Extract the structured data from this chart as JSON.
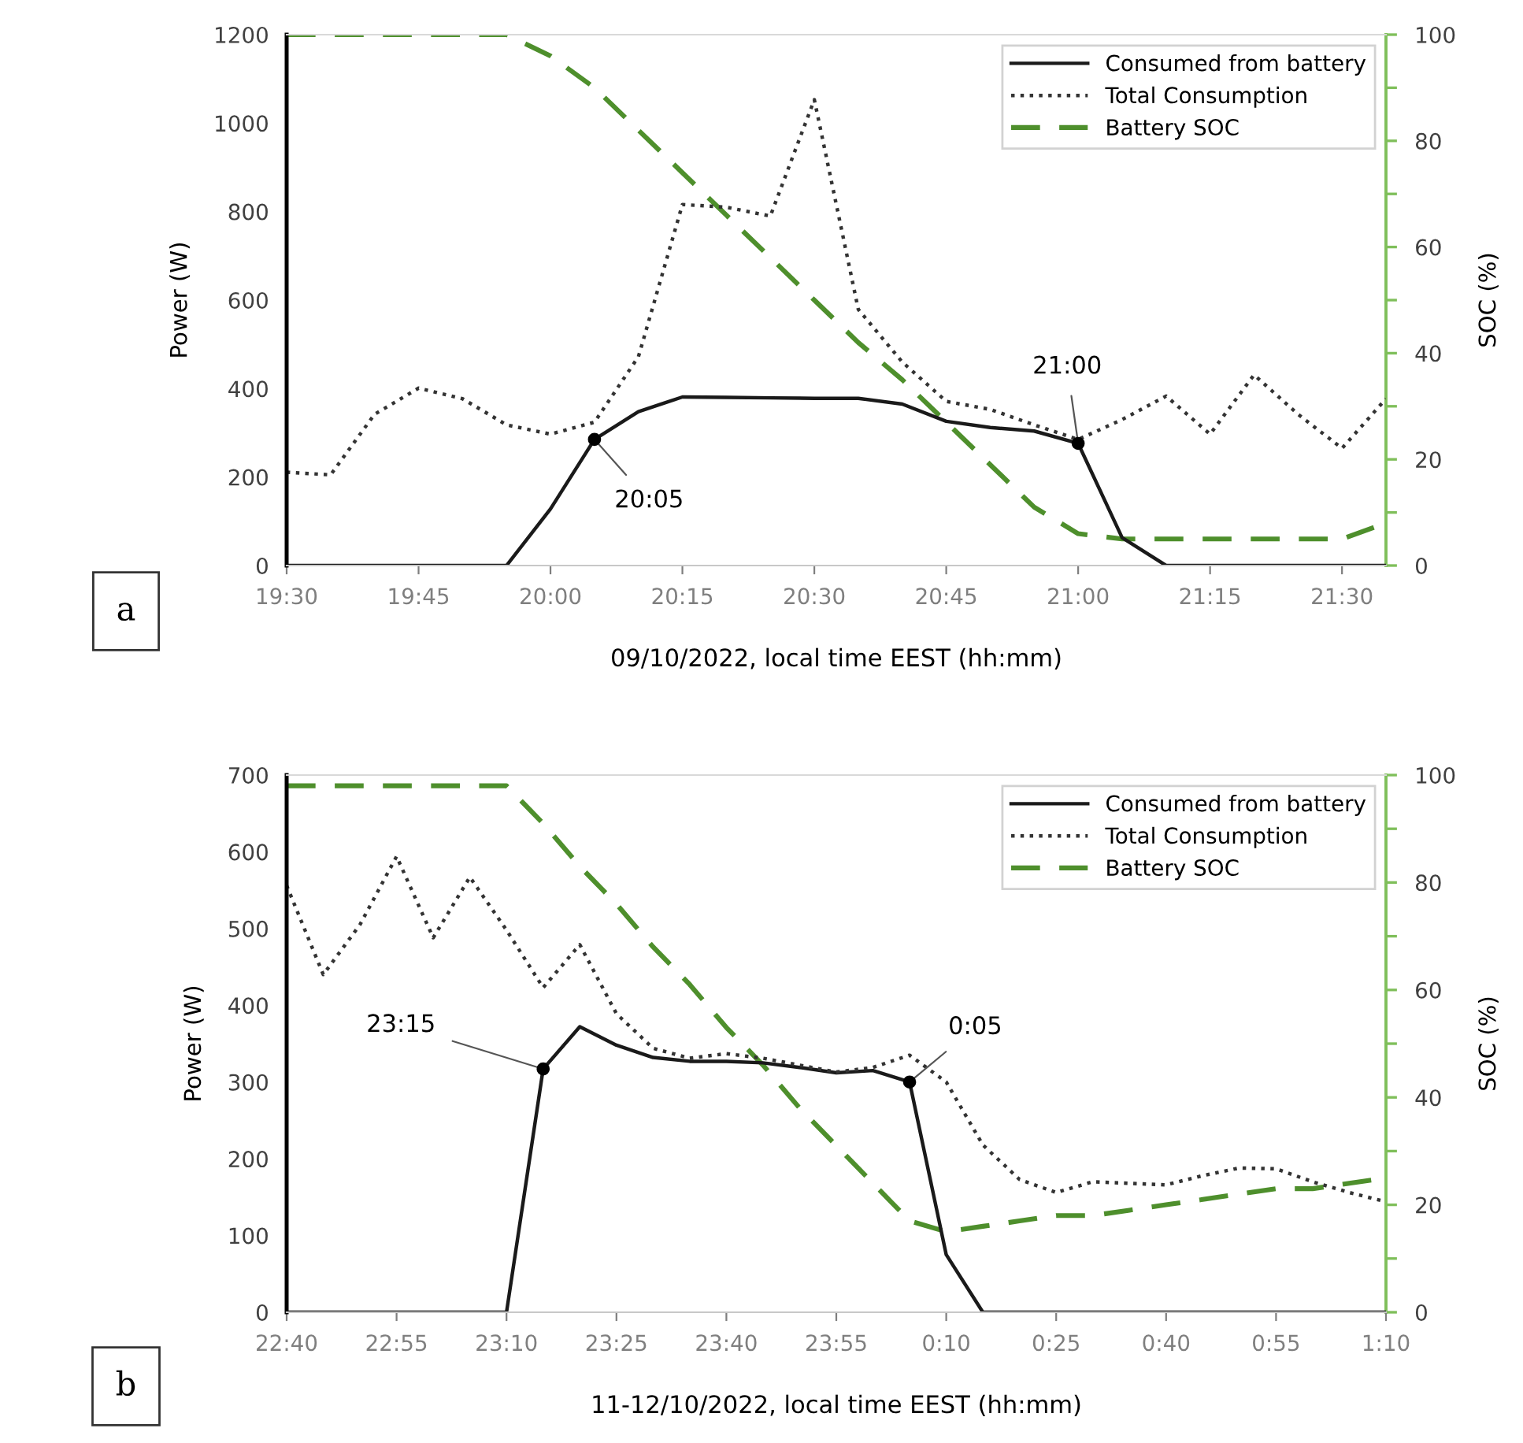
{
  "chart_data": [
    {
      "type": "line",
      "xlabel": "09/10/2022, local time EEST (hh:mm)",
      "ylabel": "Power (W)",
      "y2label": "SOC (%)",
      "x": [
        "2022-10-09T19:30",
        "2022-10-09T19:35",
        "2022-10-09T19:40",
        "2022-10-09T19:45",
        "2022-10-09T19:50",
        "2022-10-09T19:55",
        "2022-10-09T20:00",
        "2022-10-09T20:05",
        "2022-10-09T20:10",
        "2022-10-09T20:15",
        "2022-10-09T20:20",
        "2022-10-09T20:25",
        "2022-10-09T20:30",
        "2022-10-09T20:35",
        "2022-10-09T20:40",
        "2022-10-09T20:45",
        "2022-10-09T20:50",
        "2022-10-09T20:55",
        "2022-10-09T21:00",
        "2022-10-09T21:05",
        "2022-10-09T21:10",
        "2022-10-09T21:15",
        "2022-10-09T21:20",
        "2022-10-09T21:25",
        "2022-10-09T21:30",
        "2022-10-09T21:35"
      ],
      "series": [
        {
          "name": "Consumed from battery",
          "color": "#1a1a1a",
          "line_style": "solid",
          "values": [
            0,
            0,
            0,
            0,
            0,
            0,
            128,
            285,
            348,
            381,
            380,
            379,
            378,
            378,
            365,
            326,
            312,
            304,
            276,
            63,
            0,
            0,
            0,
            0,
            0,
            0
          ]
        },
        {
          "name": "Total Consumption",
          "color": "#333333",
          "line_style": "dotted",
          "values": [
            211,
            205,
            342,
            401,
            377,
            318,
            297,
            324,
            472,
            816,
            810,
            790,
            1053,
            579,
            460,
            371,
            353,
            318,
            285,
            330,
            383,
            297,
            431,
            342,
            265,
            377
          ]
        },
        {
          "name": "Battery SOC",
          "color": "#4e8f2c",
          "line_style": "dashed",
          "axis": "y2",
          "values": [
            100,
            100,
            100,
            100,
            100,
            100,
            96,
            90,
            82,
            74,
            66,
            58,
            50,
            42,
            35,
            27,
            19,
            11,
            6,
            5,
            5,
            5,
            5,
            5,
            5,
            8
          ]
        }
      ],
      "xlim": [
        "2022-10-09T19:30",
        "2022-10-09T21:35"
      ],
      "xticks": [
        {
          "value": "2022-10-09T19:30",
          "label": "19:30"
        },
        {
          "value": "2022-10-09T19:45",
          "label": "19:45"
        },
        {
          "value": "2022-10-09T20:00",
          "label": "20:00"
        },
        {
          "value": "2022-10-09T20:15",
          "label": "20:15"
        },
        {
          "value": "2022-10-09T20:30",
          "label": "20:30"
        },
        {
          "value": "2022-10-09T20:45",
          "label": "20:45"
        },
        {
          "value": "2022-10-09T21:00",
          "label": "21:00"
        },
        {
          "value": "2022-10-09T21:15",
          "label": "21:15"
        },
        {
          "value": "2022-10-09T21:30",
          "label": "21:30"
        }
      ],
      "ylim": [
        0,
        1200
      ],
      "yticks": [
        0,
        200,
        400,
        600,
        800,
        1000,
        1200
      ],
      "y2lim": [
        0,
        100
      ],
      "y2ticks": [
        0,
        {
          "value": 10,
          "label": null
        },
        20,
        {
          "value": 30,
          "label": null
        },
        40,
        {
          "value": 50,
          "label": null
        },
        60,
        {
          "value": 70,
          "label": null
        },
        80,
        {
          "value": 90,
          "label": null
        },
        100
      ],
      "annotations": [
        {
          "text": "20:05",
          "x": "2022-10-09T20:05",
          "y": 285
        },
        {
          "text": "21:00",
          "x": "2022-10-09T21:00",
          "y": 276
        },
        "a"
      ],
      "legend": "top right",
      "grid": false,
      "marker": "none"
    },
    {
      "type": "line",
      "xlabel": "11-12/10/2022, local time EEST (hh:mm)",
      "ylabel": "Power (W)",
      "y2label": "SOC (%)",
      "x": [
        "2022-10-11T22:40",
        "2022-10-11T22:45",
        "2022-10-11T22:50",
        "2022-10-11T22:55",
        "2022-10-11T23:00",
        "2022-10-11T23:05",
        "2022-10-11T23:10",
        "2022-10-11T23:15",
        "2022-10-11T23:20",
        "2022-10-11T23:25",
        "2022-10-11T23:30",
        "2022-10-11T23:35",
        "2022-10-11T23:40",
        "2022-10-11T23:45",
        "2022-10-11T23:50",
        "2022-10-11T23:55",
        "2022-10-12T00:00",
        "2022-10-12T00:05",
        "2022-10-12T00:10",
        "2022-10-12T00:15",
        "2022-10-12T00:20",
        "2022-10-12T00:25",
        "2022-10-12T00:30",
        "2022-10-12T00:35",
        "2022-10-12T00:40",
        "2022-10-12T00:45",
        "2022-10-12T00:50",
        "2022-10-12T00:55",
        "2022-10-12T01:00",
        "2022-10-12T01:05",
        "2022-10-12T01:10"
      ],
      "series": [
        {
          "name": "Consumed from battery",
          "color": "#1a1a1a",
          "line_style": "solid",
          "values": [
            0,
            0,
            0,
            0,
            0,
            0,
            0,
            317,
            372,
            348,
            332,
            327,
            327,
            325,
            319,
            312,
            315,
            300,
            75,
            0,
            0,
            0,
            0,
            0,
            0,
            0,
            0,
            0,
            0,
            0,
            0
          ]
        },
        {
          "name": "Total Consumption",
          "color": "#333333",
          "line_style": "dotted",
          "values": [
            556,
            440,
            505,
            594,
            488,
            567,
            498,
            423,
            479,
            389,
            344,
            331,
            337,
            331,
            322,
            313,
            319,
            335,
            300,
            218,
            173,
            156,
            170,
            168,
            166,
            178,
            188,
            187,
            170,
            156,
            144
          ]
        },
        {
          "name": "Battery SOC",
          "color": "#4e8f2c",
          "line_style": "dashed",
          "axis": "y2",
          "values": [
            98,
            98,
            98,
            98,
            98,
            98,
            98,
            91,
            83,
            76,
            68,
            61,
            53,
            46,
            38,
            31,
            24,
            17,
            15,
            16,
            17,
            18,
            18,
            19,
            20,
            21,
            22,
            23,
            23,
            24,
            25
          ]
        }
      ],
      "xlim": [
        "2022-10-11T22:40",
        "2022-10-12T01:10"
      ],
      "xticks": [
        {
          "value": "2022-10-11T22:40",
          "label": "22:40"
        },
        {
          "value": "2022-10-11T22:55",
          "label": "22:55"
        },
        {
          "value": "2022-10-11T23:10",
          "label": "23:10"
        },
        {
          "value": "2022-10-11T23:25",
          "label": "23:25"
        },
        {
          "value": "2022-10-11T23:40",
          "label": "23:40"
        },
        {
          "value": "2022-10-11T23:55",
          "label": "23:55"
        },
        {
          "value": "2022-10-12T00:10",
          "label": "0:10"
        },
        {
          "value": "2022-10-12T00:25",
          "label": "0:25"
        },
        {
          "value": "2022-10-12T00:40",
          "label": "0:40"
        },
        {
          "value": "2022-10-12T00:55",
          "label": "0:55"
        },
        {
          "value": "2022-10-12T01:10",
          "label": "1:10"
        }
      ],
      "ylim": [
        0,
        700
      ],
      "yticks": [
        0,
        100,
        200,
        300,
        400,
        500,
        600,
        700
      ],
      "y2lim": [
        0,
        100
      ],
      "y2ticks": [
        0,
        {
          "value": 10,
          "label": null
        },
        20,
        {
          "value": 30,
          "label": null
        },
        40,
        {
          "value": 50,
          "label": null
        },
        60,
        {
          "value": 70,
          "label": null
        },
        80,
        {
          "value": 90,
          "label": null
        },
        100
      ],
      "annotations": [
        {
          "text": "23:15",
          "x": "2022-10-11T23:15",
          "y": 317
        },
        {
          "text": "0:05",
          "x": "2022-10-12T00:05",
          "y": 300
        },
        "b"
      ],
      "legend": "top right",
      "grid": false,
      "marker": "none"
    }
  ]
}
